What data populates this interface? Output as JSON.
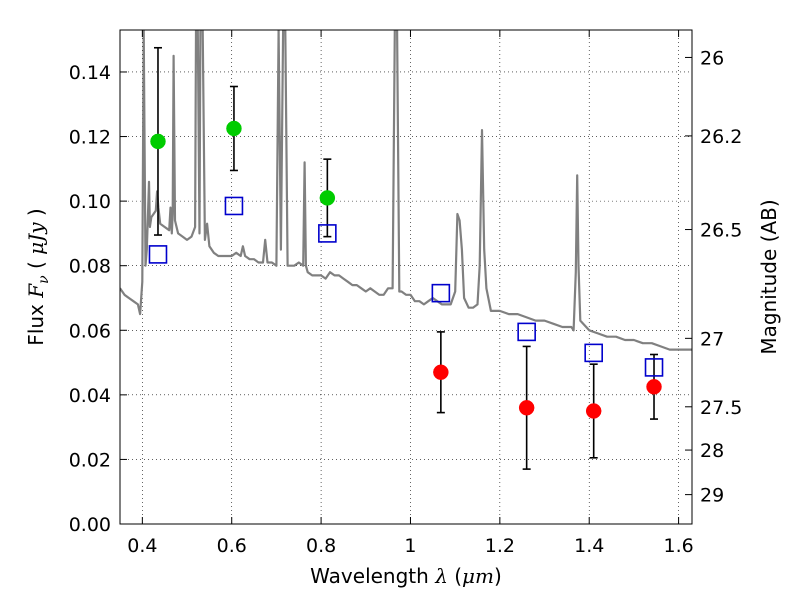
{
  "chart_data": {
    "type": "scatter",
    "title": "",
    "xlabel": "Wavelength",
    "xlabel_symbol": "λ",
    "xlabel_unit": "μm",
    "ylabel": "Flux",
    "ylabel_symbol": "F",
    "ylabel_subscript": "ν",
    "ylabel_unit": "μJy",
    "y2label": "Magnitude (AB)",
    "xlim": [
      0.35,
      1.63
    ],
    "ylim": [
      0.0,
      0.153
    ],
    "grid": true,
    "x_ticks": [
      {
        "value": 0.4,
        "label": "0.4"
      },
      {
        "value": 0.6,
        "label": "0.6"
      },
      {
        "value": 0.8,
        "label": "0.8"
      },
      {
        "value": 1.0,
        "label": "1"
      },
      {
        "value": 1.2,
        "label": "1.2"
      },
      {
        "value": 1.4,
        "label": "1.4"
      },
      {
        "value": 1.6,
        "label": "1.6"
      }
    ],
    "y_ticks": [
      {
        "value": 0.0,
        "label": "0.00"
      },
      {
        "value": 0.02,
        "label": "0.02"
      },
      {
        "value": 0.04,
        "label": "0.04"
      },
      {
        "value": 0.06,
        "label": "0.06"
      },
      {
        "value": 0.08,
        "label": "0.08"
      },
      {
        "value": 0.1,
        "label": "0.10"
      },
      {
        "value": 0.12,
        "label": "0.12"
      },
      {
        "value": 0.14,
        "label": "0.14"
      }
    ],
    "y2_ticks": [
      {
        "flux": 0.1445,
        "label": "26"
      },
      {
        "flux": 0.1202,
        "label": "26.2"
      },
      {
        "flux": 0.0912,
        "label": "26.5"
      },
      {
        "flux": 0.0575,
        "label": "27"
      },
      {
        "flux": 0.0363,
        "label": "27.5"
      },
      {
        "flux": 0.0229,
        "label": "28"
      },
      {
        "flux": 0.0091,
        "label": "29"
      }
    ],
    "series": [
      {
        "type": "line",
        "color": "#808080",
        "points": [
          [
            0.35,
            0.073
          ],
          [
            0.36,
            0.071
          ],
          [
            0.37,
            0.07
          ],
          [
            0.38,
            0.069
          ],
          [
            0.39,
            0.068
          ],
          [
            0.395,
            0.065
          ],
          [
            0.4,
            0.075
          ],
          [
            0.403,
            0.153
          ],
          [
            0.407,
            0.08
          ],
          [
            0.41,
            0.085
          ],
          [
            0.413,
            0.098
          ],
          [
            0.415,
            0.106
          ],
          [
            0.417,
            0.092
          ],
          [
            0.42,
            0.095
          ],
          [
            0.43,
            0.097
          ],
          [
            0.433,
            0.103
          ],
          [
            0.436,
            0.098
          ],
          [
            0.44,
            0.093
          ],
          [
            0.45,
            0.092
          ],
          [
            0.46,
            0.091
          ],
          [
            0.463,
            0.098
          ],
          [
            0.466,
            0.09
          ],
          [
            0.468,
            0.096
          ],
          [
            0.47,
            0.145
          ],
          [
            0.473,
            0.094
          ],
          [
            0.48,
            0.09
          ],
          [
            0.49,
            0.089
          ],
          [
            0.5,
            0.088
          ],
          [
            0.51,
            0.089
          ],
          [
            0.518,
            0.092
          ],
          [
            0.52,
            0.153
          ],
          [
            0.524,
            0.153
          ],
          [
            0.528,
            0.09
          ],
          [
            0.53,
            0.153
          ],
          [
            0.535,
            0.153
          ],
          [
            0.54,
            0.088
          ],
          [
            0.545,
            0.093
          ],
          [
            0.55,
            0.086
          ],
          [
            0.56,
            0.084
          ],
          [
            0.57,
            0.083
          ],
          [
            0.58,
            0.083
          ],
          [
            0.59,
            0.083
          ],
          [
            0.6,
            0.083
          ],
          [
            0.61,
            0.084
          ],
          [
            0.62,
            0.083
          ],
          [
            0.625,
            0.086
          ],
          [
            0.63,
            0.083
          ],
          [
            0.64,
            0.082
          ],
          [
            0.65,
            0.082
          ],
          [
            0.66,
            0.081
          ],
          [
            0.67,
            0.081
          ],
          [
            0.675,
            0.088
          ],
          [
            0.68,
            0.081
          ],
          [
            0.69,
            0.081
          ],
          [
            0.7,
            0.08
          ],
          [
            0.705,
            0.153
          ],
          [
            0.71,
            0.085
          ],
          [
            0.715,
            0.153
          ],
          [
            0.72,
            0.153
          ],
          [
            0.725,
            0.08
          ],
          [
            0.73,
            0.08
          ],
          [
            0.74,
            0.08
          ],
          [
            0.75,
            0.081
          ],
          [
            0.76,
            0.08
          ],
          [
            0.763,
            0.112
          ],
          [
            0.766,
            0.08
          ],
          [
            0.77,
            0.078
          ],
          [
            0.78,
            0.077
          ],
          [
            0.79,
            0.077
          ],
          [
            0.8,
            0.077
          ],
          [
            0.81,
            0.076
          ],
          [
            0.82,
            0.078
          ],
          [
            0.83,
            0.077
          ],
          [
            0.84,
            0.077
          ],
          [
            0.85,
            0.076
          ],
          [
            0.86,
            0.075
          ],
          [
            0.87,
            0.074
          ],
          [
            0.88,
            0.074
          ],
          [
            0.89,
            0.073
          ],
          [
            0.9,
            0.072
          ],
          [
            0.91,
            0.073
          ],
          [
            0.92,
            0.072
          ],
          [
            0.93,
            0.071
          ],
          [
            0.94,
            0.071
          ],
          [
            0.95,
            0.073
          ],
          [
            0.96,
            0.073
          ],
          [
            0.965,
            0.153
          ],
          [
            0.97,
            0.153
          ],
          [
            0.975,
            0.072
          ],
          [
            0.98,
            0.072
          ],
          [
            0.99,
            0.071
          ],
          [
            1.0,
            0.071
          ],
          [
            1.01,
            0.069
          ],
          [
            1.02,
            0.069
          ],
          [
            1.03,
            0.068
          ],
          [
            1.04,
            0.069
          ],
          [
            1.05,
            0.07
          ],
          [
            1.06,
            0.069
          ],
          [
            1.07,
            0.068
          ],
          [
            1.08,
            0.068
          ],
          [
            1.09,
            0.068
          ],
          [
            1.1,
            0.072
          ],
          [
            1.105,
            0.096
          ],
          [
            1.11,
            0.094
          ],
          [
            1.115,
            0.085
          ],
          [
            1.12,
            0.07
          ],
          [
            1.13,
            0.067
          ],
          [
            1.14,
            0.067
          ],
          [
            1.15,
            0.068
          ],
          [
            1.155,
            0.08
          ],
          [
            1.16,
            0.122
          ],
          [
            1.165,
            0.085
          ],
          [
            1.17,
            0.073
          ],
          [
            1.18,
            0.066
          ],
          [
            1.19,
            0.066
          ],
          [
            1.2,
            0.066
          ],
          [
            1.22,
            0.065
          ],
          [
            1.24,
            0.065
          ],
          [
            1.26,
            0.064
          ],
          [
            1.28,
            0.063
          ],
          [
            1.3,
            0.063
          ],
          [
            1.32,
            0.062
          ],
          [
            1.34,
            0.061
          ],
          [
            1.36,
            0.061
          ],
          [
            1.365,
            0.06
          ],
          [
            1.37,
            0.078
          ],
          [
            1.373,
            0.108
          ],
          [
            1.376,
            0.08
          ],
          [
            1.38,
            0.063
          ],
          [
            1.4,
            0.06
          ],
          [
            1.42,
            0.059
          ],
          [
            1.44,
            0.058
          ],
          [
            1.46,
            0.058
          ],
          [
            1.48,
            0.057
          ],
          [
            1.5,
            0.057
          ],
          [
            1.52,
            0.056
          ],
          [
            1.54,
            0.056
          ],
          [
            1.56,
            0.055
          ],
          [
            1.58,
            0.054
          ],
          [
            1.6,
            0.054
          ],
          [
            1.63,
            0.054
          ]
        ]
      },
      {
        "type": "scatter",
        "marker": "circle",
        "color": "#00cc00",
        "points": [
          {
            "x": 0.435,
            "y": 0.1185,
            "err_low": 0.029,
            "err_high": 0.029
          },
          {
            "x": 0.605,
            "y": 0.1225,
            "err_low": 0.013,
            "err_high": 0.013
          },
          {
            "x": 0.814,
            "y": 0.101,
            "err_low": 0.012,
            "err_high": 0.012
          }
        ]
      },
      {
        "type": "scatter",
        "marker": "circle",
        "color": "#ff0000",
        "points": [
          {
            "x": 1.068,
            "y": 0.047,
            "err_low": 0.0125,
            "err_high": 0.0125
          },
          {
            "x": 1.26,
            "y": 0.036,
            "err_low": 0.019,
            "err_high": 0.019
          },
          {
            "x": 1.41,
            "y": 0.035,
            "err_low": 0.0145,
            "err_high": 0.0145
          },
          {
            "x": 1.545,
            "y": 0.0425,
            "err_low": 0.01,
            "err_high": 0.01
          }
        ]
      },
      {
        "type": "scatter",
        "marker": "open-square",
        "color": "#0000cc",
        "points": [
          {
            "x": 0.435,
            "y": 0.0835
          },
          {
            "x": 0.605,
            "y": 0.0985
          },
          {
            "x": 0.814,
            "y": 0.09
          },
          {
            "x": 1.068,
            "y": 0.0715
          },
          {
            "x": 1.26,
            "y": 0.0595
          },
          {
            "x": 1.41,
            "y": 0.053
          },
          {
            "x": 1.545,
            "y": 0.0485
          }
        ]
      }
    ]
  }
}
